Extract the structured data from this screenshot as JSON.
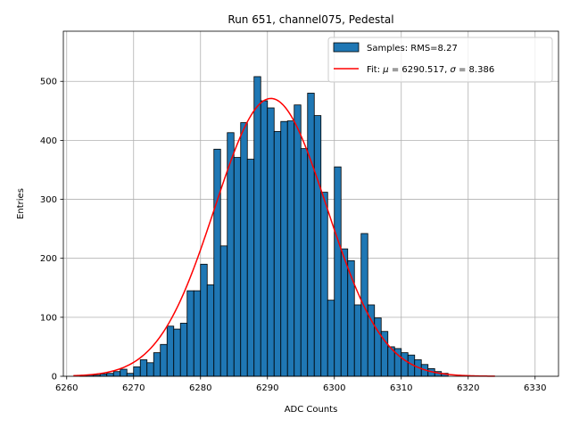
{
  "chart_data": {
    "type": "bar",
    "title": "Run 651, channel075, Pedestal",
    "xlabel": "ADC Counts",
    "ylabel": "Entries",
    "xlim": [
      6259.5,
      6333.5
    ],
    "ylim": [
      0,
      585
    ],
    "xticks": [
      6260,
      6270,
      6280,
      6290,
      6300,
      6310,
      6320,
      6330
    ],
    "yticks": [
      0,
      100,
      200,
      300,
      400,
      500
    ],
    "grid": true,
    "legend_position": "top-right",
    "histogram": {
      "name": "Samples: RMS=8.27",
      "color": "#1f77b4",
      "bin_starts": [
        6262,
        6263,
        6264,
        6265,
        6266,
        6267,
        6268,
        6269,
        6270,
        6271,
        6272,
        6273,
        6274,
        6275,
        6276,
        6277,
        6278,
        6279,
        6280,
        6281,
        6282,
        6283,
        6284,
        6285,
        6286,
        6287,
        6288,
        6289,
        6290,
        6291,
        6292,
        6293,
        6294,
        6295,
        6296,
        6297,
        6298,
        6299,
        6300,
        6301,
        6302,
        6303,
        6304,
        6305,
        6306,
        6307,
        6308,
        6309,
        6310,
        6311,
        6312,
        6313,
        6314,
        6315,
        6316
      ],
      "counts": [
        1,
        2,
        2,
        4,
        5,
        8,
        12,
        5,
        16,
        28,
        23,
        40,
        54,
        85,
        80,
        90,
        145,
        145,
        190,
        155,
        385,
        221,
        413,
        371,
        430,
        368,
        508,
        467,
        455,
        415,
        432,
        433,
        460,
        386,
        480,
        442,
        312,
        129,
        355,
        216,
        196,
        121,
        242,
        121,
        99,
        76,
        50,
        47,
        40,
        36,
        28,
        20,
        13,
        8,
        5
      ]
    },
    "fit": {
      "name": "Fit: μ = 6290.517, σ = 8.386",
      "color": "#ff0000",
      "mu": 6290.517,
      "sigma": 8.386,
      "amplitude": 471,
      "x_range": [
        6261,
        6324
      ]
    }
  },
  "legend": {
    "hist_prefix": "Samples: RMS=8.27",
    "fit_prefix": "Fit: ",
    "fit_mu_symbol": "μ",
    "fit_mu_value": " = 6290.517, ",
    "fit_sigma_symbol": "σ",
    "fit_sigma_value": " = 8.386"
  }
}
